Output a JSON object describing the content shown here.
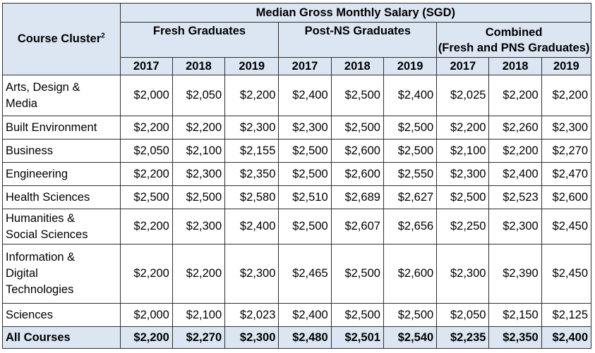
{
  "header": {
    "cluster_label": "Course Cluster",
    "cluster_footnote": "2",
    "top_title": "Median Gross Monthly Salary (SGD)",
    "groups": {
      "fresh": "Fresh Graduates",
      "post_ns": "Post-NS Graduates",
      "combined_line1": "Combined",
      "combined_line2": "(Fresh and PNS Graduates)"
    },
    "years": [
      "2017",
      "2018",
      "2019",
      "2017",
      "2018",
      "2019",
      "2017",
      "2018",
      "2019"
    ]
  },
  "rows": [
    {
      "label_lines": [
        "Arts, Design &",
        "Media"
      ],
      "values": [
        "$2,000",
        "$2,050",
        "$2,200",
        "$2,400",
        "$2,500",
        "$2,400",
        "$2,025",
        "$2,200",
        "$2,200"
      ]
    },
    {
      "label_lines": [
        "Built Environment"
      ],
      "values": [
        "$2,200",
        "$2,200",
        "$2,300",
        "$2,300",
        "$2,500",
        "$2,500",
        "$2,200",
        "$2,260",
        "$2,300"
      ]
    },
    {
      "label_lines": [
        "Business"
      ],
      "values": [
        "$2,050",
        "$2,100",
        "$2,155",
        "$2,500",
        "$2,600",
        "$2,500",
        "$2,100",
        "$2,200",
        "$2,270"
      ]
    },
    {
      "label_lines": [
        "Engineering"
      ],
      "values": [
        "$2,200",
        "$2,300",
        "$2,350",
        "$2,500",
        "$2,600",
        "$2,550",
        "$2,300",
        "$2,400",
        "$2,470"
      ]
    },
    {
      "label_lines": [
        "Health Sciences"
      ],
      "values": [
        "$2,500",
        "$2,500",
        "$2,580",
        "$2,510",
        "$2,689",
        "$2,627",
        "$2,500",
        "$2,523",
        "$2,600"
      ]
    },
    {
      "label_lines": [
        "Humanities &",
        "Social Sciences"
      ],
      "values": [
        "$2,200",
        "$2,300",
        "$2,400",
        "$2,500",
        "$2,607",
        "$2,656",
        "$2,250",
        "$2,300",
        "$2,450"
      ]
    },
    {
      "label_lines": [
        "Information &",
        "Digital",
        "Technologies"
      ],
      "values": [
        "$2,200",
        "$2,200",
        "$2,300",
        "$2,465",
        "$2,500",
        "$2,600",
        "$2,300",
        "$2,390",
        "$2,450"
      ]
    },
    {
      "label_lines": [
        "Sciences"
      ],
      "values": [
        "$2,000",
        "$2,100",
        "$2,023",
        "$2,400",
        "$2,500",
        "$2,500",
        "$2,050",
        "$2,150",
        "$2,125"
      ]
    }
  ],
  "total": {
    "label": "All Courses",
    "values": [
      "$2,200",
      "$2,270",
      "$2,300",
      "$2,480",
      "$2,501",
      "$2,540",
      "$2,235",
      "$2,350",
      "$2,400"
    ]
  }
}
